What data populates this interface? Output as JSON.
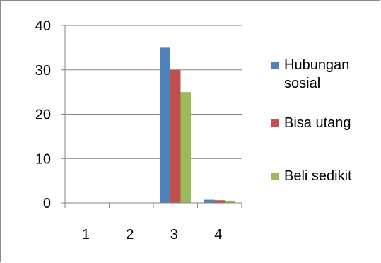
{
  "chart_data": {
    "type": "bar",
    "categories": [
      "1",
      "2",
      "3",
      "4"
    ],
    "series": [
      {
        "name": "Hubungan sosial",
        "values": [
          0,
          0,
          35,
          0.7
        ],
        "color": "#4f81bd"
      },
      {
        "name": "Bisa utang",
        "values": [
          0,
          0,
          30,
          0.6
        ],
        "color": "#c0504d"
      },
      {
        "name": "Beli sedikit",
        "values": [
          0,
          0,
          25,
          0.5
        ],
        "color": "#9bbb59"
      }
    ],
    "ylim": [
      0,
      40
    ],
    "yticks": [
      0,
      10,
      20,
      30,
      40
    ],
    "title": "",
    "xlabel": "",
    "ylabel": "",
    "grid": true,
    "legend_position": "right",
    "gridline_color": "#868686"
  }
}
